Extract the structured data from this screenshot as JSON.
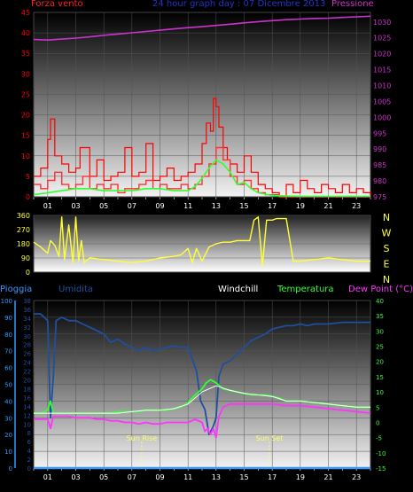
{
  "header": {
    "wind_speed": "Forza vento",
    "graph_title": "24 hour graph day : 07 Dicembre 2013",
    "pressure": "Pressione"
  },
  "legend": {
    "rain": "Pioggia",
    "humidity": "Umidita",
    "windchill": "Windchill",
    "temperature": "Temperatura",
    "dewpoint": "Dew Point (°C)"
  },
  "compass": [
    "N",
    "W",
    "S",
    "E",
    "N"
  ],
  "colors": {
    "wind": "#ff0000",
    "gust": "#ff0000",
    "wind_avg": "#33ff33",
    "pressure": "#cc33cc",
    "direction": "#ffff33",
    "humidity": "#1f4f9f",
    "temperature": "#33ff33",
    "dewpoint": "#ff33ff",
    "windchill": "#ffffff",
    "rain": "#3399ff",
    "title": "#2233cc",
    "sun_marker": "#ffff66"
  },
  "chart_data": [
    {
      "type": "line",
      "name": "wind-pressure",
      "x_ticks": [
        "01",
        "03",
        "05",
        "07",
        "09",
        "11",
        "13",
        "15",
        "17",
        "19",
        "21",
        "23"
      ],
      "ylabel_left": "Forza vento",
      "ylabel_right": "Pressione",
      "ylim": [
        0,
        45
      ],
      "yticks": [
        0,
        5,
        10,
        15,
        20,
        25,
        30,
        35,
        40,
        45
      ],
      "y2lim": [
        975,
        1033
      ],
      "y2ticks": [
        975,
        980,
        985,
        990,
        995,
        1000,
        1005,
        1010,
        1015,
        1020,
        1025,
        1030
      ],
      "xlim": [
        0,
        24
      ],
      "grid": true,
      "series": [
        {
          "name": "Pressione",
          "axis": "right",
          "x": [
            0,
            1,
            2,
            3,
            4,
            5,
            6,
            7,
            8,
            9,
            10,
            11,
            12,
            13,
            14,
            15,
            16,
            17,
            18,
            19,
            20,
            21,
            22,
            23,
            24
          ],
          "values": [
            1024.5,
            1024.3,
            1024.6,
            1024.9,
            1025.3,
            1025.8,
            1026.2,
            1026.6,
            1027.0,
            1027.4,
            1027.8,
            1028.2,
            1028.5,
            1028.9,
            1029.3,
            1029.7,
            1030.1,
            1030.4,
            1030.7,
            1030.9,
            1031.1,
            1031.2,
            1031.4,
            1031.6,
            1031.8
          ]
        },
        {
          "name": "gust",
          "axis": "left",
          "x": [
            0,
            0.5,
            1,
            1.2,
            1.5,
            2,
            2.5,
            3,
            3.3,
            3.6,
            4,
            4.5,
            5,
            5.5,
            6,
            6.5,
            7,
            7.5,
            8,
            8.5,
            9,
            9.5,
            10,
            10.5,
            11,
            11.5,
            12,
            12.3,
            12.6,
            12.8,
            13,
            13.2,
            13.5,
            13.8,
            14,
            14.5,
            15,
            15.5,
            16,
            16.5,
            17,
            17.5,
            18,
            18.5,
            19,
            19.5,
            20,
            20.5,
            21,
            21.5,
            22,
            22.5,
            23,
            23.5,
            24
          ],
          "values": [
            5,
            7,
            14,
            19,
            10,
            8,
            6,
            7,
            12,
            12,
            5,
            9,
            4,
            5,
            6,
            12,
            5,
            6,
            13,
            4,
            5,
            7,
            4,
            5,
            6,
            8,
            13,
            18,
            16,
            24,
            22,
            17,
            12,
            9,
            8,
            6,
            10,
            6,
            3,
            2,
            1,
            0,
            3,
            1,
            4,
            2,
            1,
            3,
            2,
            1,
            3,
            1,
            2,
            1,
            0
          ]
        },
        {
          "name": "wind",
          "axis": "left",
          "x": [
            0,
            0.5,
            1,
            1.5,
            2,
            2.5,
            3,
            3.5,
            4,
            4.5,
            5,
            5.5,
            6,
            6.5,
            7,
            7.5,
            8,
            8.5,
            9,
            9.5,
            10,
            10.5,
            11,
            11.5,
            12,
            12.5,
            13,
            13.5,
            14,
            14.5,
            15,
            15.5,
            16,
            16.5,
            17,
            17.5,
            18,
            18.5,
            19,
            19.5,
            20,
            20.5,
            21,
            21.5,
            22,
            22.5,
            23,
            23.5,
            24
          ],
          "values": [
            3,
            2,
            4,
            6,
            3,
            2,
            3,
            5,
            2,
            3,
            2,
            3,
            1,
            2,
            2,
            3,
            4,
            2,
            3,
            2,
            2,
            3,
            2,
            3,
            5,
            8,
            12,
            9,
            5,
            3,
            4,
            2,
            1,
            0.5,
            0.5,
            0,
            0,
            0,
            0,
            0,
            0,
            0,
            0,
            0,
            0,
            0,
            0,
            0,
            0
          ]
        },
        {
          "name": "wind_avg",
          "axis": "left",
          "x": [
            0,
            1,
            2,
            3,
            4,
            5,
            6,
            7,
            8,
            9,
            10,
            11,
            11.5,
            12,
            12.5,
            13,
            13.5,
            14,
            14.5,
            15,
            15.5,
            16,
            17,
            18,
            19,
            20,
            21,
            22,
            23,
            24
          ],
          "values": [
            0.5,
            1,
            1.5,
            2,
            2,
            1.5,
            1.5,
            1.5,
            2,
            2,
            1.5,
            1.5,
            2.5,
            4.5,
            7,
            9,
            8,
            6,
            3,
            3.5,
            2,
            1,
            0.3,
            0.2,
            0.1,
            0.1,
            0.1,
            0.1,
            0.1,
            0.1
          ]
        }
      ]
    },
    {
      "type": "line",
      "name": "wind-direction",
      "ylim": [
        0,
        360
      ],
      "yticks": [
        0,
        90,
        180,
        270,
        360
      ],
      "xlim": [
        0,
        24
      ],
      "compass_right": [
        "N",
        "W",
        "S",
        "E",
        "N"
      ],
      "series": [
        {
          "name": "direction",
          "x": [
            0,
            0.5,
            1,
            1.2,
            1.5,
            1.8,
            2,
            2.2,
            2.5,
            2.8,
            3,
            3.2,
            3.4,
            3.6,
            4,
            5,
            6,
            7,
            8,
            9,
            10,
            10.5,
            11,
            11.3,
            11.6,
            12,
            12.5,
            13,
            13.5,
            14,
            14.5,
            15,
            15.4,
            15.7,
            16,
            16.3,
            16.6,
            17,
            17.3,
            17.6,
            18,
            18.5,
            19,
            20,
            21,
            22,
            23,
            24
          ],
          "values": [
            190,
            160,
            120,
            200,
            170,
            100,
            350,
            80,
            300,
            60,
            350,
            70,
            200,
            60,
            90,
            80,
            70,
            60,
            70,
            90,
            100,
            110,
            150,
            60,
            150,
            70,
            160,
            180,
            190,
            190,
            200,
            200,
            200,
            330,
            350,
            40,
            330,
            330,
            340,
            340,
            340,
            70,
            70,
            80,
            90,
            80,
            70,
            70
          ]
        }
      ]
    },
    {
      "type": "line",
      "name": "temperature-humidity",
      "x_ticks": [
        "01",
        "03",
        "05",
        "07",
        "09",
        "11",
        "13",
        "15",
        "17",
        "19",
        "21",
        "23"
      ],
      "ylabel_left": "Pioggia",
      "ylabel_left2": "Umidita",
      "ylabel_right": "Dew Point (°C)",
      "ylim": [
        0,
        100
      ],
      "yticks": [
        0,
        10,
        20,
        30,
        40,
        50,
        60,
        70,
        80,
        90,
        100
      ],
      "ylim2": [
        0,
        38
      ],
      "yticks2": [
        0,
        2,
        4,
        6,
        8,
        10,
        12,
        14,
        16,
        18,
        20,
        22,
        24,
        26,
        28,
        30,
        32,
        34,
        36,
        38
      ],
      "y3lim": [
        -15,
        40
      ],
      "y3ticks": [
        -15,
        -10,
        -5,
        0,
        5,
        10,
        15,
        20,
        25,
        30,
        35,
        40
      ],
      "xlim": [
        0,
        24
      ],
      "grid": true,
      "annotations": [
        {
          "text": "Sun Rise",
          "x": 7.7
        },
        {
          "text": "Sun Set",
          "x": 16.8
        }
      ],
      "series": [
        {
          "name": "Umidita",
          "axis": "left",
          "x": [
            0,
            0.5,
            1,
            1.2,
            1.4,
            1.6,
            2,
            2.5,
            3,
            3.5,
            4,
            4.5,
            5,
            5.5,
            6,
            6.5,
            7,
            7.5,
            8,
            8.5,
            9,
            9.5,
            10,
            10.5,
            11,
            11.3,
            11.6,
            11.9,
            12.2,
            12.5,
            12.8,
            13,
            13.2,
            13.5,
            14,
            14.5,
            15,
            15.5,
            16,
            16.5,
            17,
            17.5,
            18,
            18.5,
            19,
            19.5,
            20,
            21,
            22,
            23,
            24
          ],
          "values": [
            92,
            92,
            88,
            30,
            55,
            88,
            90,
            88,
            88,
            86,
            84,
            82,
            80,
            75,
            77,
            74,
            72,
            70,
            72,
            70,
            71,
            72,
            73,
            72,
            72,
            65,
            58,
            40,
            35,
            20,
            25,
            30,
            55,
            62,
            64,
            68,
            72,
            76,
            78,
            80,
            83,
            84,
            85,
            85,
            86,
            85,
            86,
            86,
            87,
            87,
            87
          ]
        },
        {
          "name": "Temperatura",
          "axis": "right",
          "x": [
            0,
            0.5,
            1,
            1.2,
            1.4,
            1.6,
            2,
            2.5,
            3,
            3.5,
            4,
            4.5,
            5,
            5.5,
            6,
            6.5,
            7,
            7.5,
            8,
            8.5,
            9,
            9.5,
            10,
            10.5,
            11,
            11.5,
            12,
            12.3,
            12.6,
            13,
            13.5,
            14,
            14.5,
            15,
            15.5,
            16,
            16.5,
            17,
            17.5,
            18,
            19,
            20,
            21,
            22,
            23,
            24
          ],
          "values": [
            3,
            3,
            4,
            7,
            3,
            3,
            3,
            3,
            3,
            3,
            3,
            3,
            3,
            3,
            3.5,
            3.5,
            3.5,
            3.5,
            4,
            4,
            4,
            4,
            4.5,
            5,
            6.5,
            9,
            11,
            13,
            14,
            13,
            11,
            10.5,
            10,
            9.5,
            9,
            9,
            9,
            8.5,
            8,
            7,
            7,
            6.5,
            6,
            5.5,
            5,
            5
          ]
        },
        {
          "name": "Dew Point",
          "axis": "right",
          "x": [
            0,
            0.5,
            1,
            1.2,
            1.4,
            1.6,
            2,
            2.5,
            3,
            3.5,
            4,
            4.5,
            5,
            5.5,
            6,
            6.5,
            7,
            7.5,
            8,
            8.5,
            9,
            9.5,
            10,
            10.5,
            11,
            11.5,
            12,
            12.2,
            12.4,
            12.6,
            12.8,
            13,
            13.2,
            13.5,
            14,
            14.5,
            15,
            15.5,
            16,
            17,
            18,
            19,
            20,
            21,
            22,
            23,
            24
          ],
          "values": [
            1,
            1,
            1,
            -2,
            2,
            2,
            2,
            2,
            1.5,
            1.5,
            1.5,
            1,
            1,
            0.5,
            0.5,
            0,
            0,
            -0.5,
            0,
            -0.5,
            -0.5,
            0,
            0,
            0,
            0,
            1,
            0,
            -3,
            -2,
            -4,
            -2,
            -5,
            2,
            5,
            6,
            6,
            6,
            6,
            6,
            6,
            5.5,
            5.5,
            5,
            4.5,
            4,
            3.5,
            3
          ]
        },
        {
          "name": "Windchill",
          "axis": "right",
          "x": [
            0,
            1,
            2,
            3,
            4,
            5,
            6,
            7,
            8,
            9,
            10,
            11,
            12,
            13,
            14,
            15,
            16,
            17,
            18,
            19,
            20,
            21,
            22,
            23,
            24
          ],
          "values": [
            3,
            3,
            3,
            3,
            3,
            3,
            3,
            3.5,
            4,
            4,
            4.5,
            6,
            10,
            12,
            10.5,
            9.5,
            9,
            8.5,
            7,
            7,
            6.5,
            6,
            5.5,
            5,
            5
          ]
        },
        {
          "name": "Pioggia",
          "axis": "left2",
          "x": [
            0,
            24
          ],
          "values": [
            0,
            0
          ]
        }
      ]
    }
  ]
}
